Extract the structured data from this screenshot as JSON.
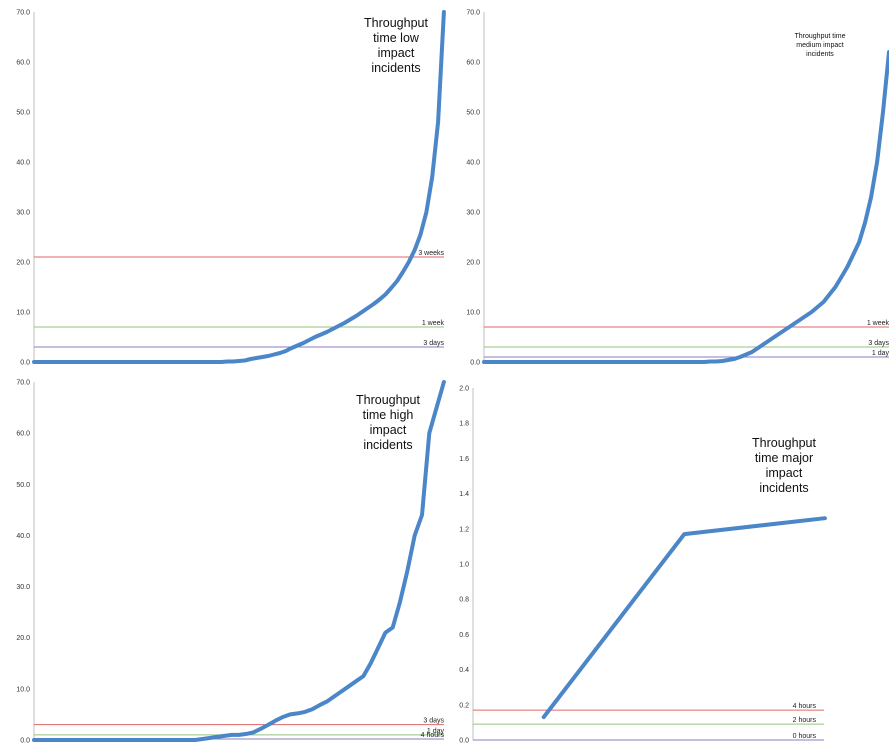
{
  "chart_data": [
    {
      "type": "line",
      "title": "Throughput time low impact incidents",
      "title_lines": [
        "Throughput",
        "time low",
        "impact",
        "incidents"
      ],
      "ylim": [
        0,
        70
      ],
      "ytick_labels": [
        "0.0",
        "10.0",
        "20.0",
        "30.0",
        "40.0",
        "50.0",
        "60.0",
        "70.0"
      ],
      "grid": false,
      "series_color": "#4a86c8",
      "series": [
        {
          "values": [
            0,
            0,
            0,
            0,
            0,
            0,
            0,
            0,
            0,
            0,
            0,
            0,
            0,
            0,
            0,
            0,
            0,
            0,
            0,
            0,
            0,
            0,
            0,
            0,
            0,
            0,
            0,
            0,
            0,
            0,
            0,
            0,
            0,
            0.1,
            0.1,
            0.2,
            0.3,
            0.6,
            0.8,
            1,
            1.2,
            1.5,
            1.8,
            2.2,
            2.8,
            3.3,
            3.8,
            4.4,
            5,
            5.5,
            6,
            6.6,
            7.2,
            7.8,
            8.5,
            9.2,
            10,
            10.8,
            11.6,
            12.5,
            13.5,
            14.8,
            16.2,
            18,
            20,
            22.4,
            25.5,
            30,
            37,
            48,
            70
          ]
        }
      ],
      "reference_lines": [
        {
          "label": "3 weeks",
          "value": 21,
          "color": "#e06666"
        },
        {
          "label": "1 week",
          "value": 7,
          "color": "#93c47d"
        },
        {
          "label": "3 days",
          "value": 3,
          "color": "#8e7cc3"
        }
      ]
    },
    {
      "type": "line",
      "title": "Throughput time medium impact incidents",
      "title_lines": [
        "Throughput time",
        "medium impact",
        "incidents"
      ],
      "ylim": [
        0,
        70
      ],
      "ytick_labels": [
        "0.0",
        "10.0",
        "20.0",
        "30.0",
        "40.0",
        "50.0",
        "60.0",
        "70.0"
      ],
      "grid": false,
      "series_color": "#4a86c8",
      "series": [
        {
          "values": [
            0,
            0,
            0,
            0,
            0,
            0,
            0,
            0,
            0,
            0,
            0,
            0,
            0,
            0,
            0,
            0,
            0,
            0,
            0,
            0,
            0,
            0,
            0,
            0,
            0,
            0,
            0,
            0,
            0,
            0,
            0,
            0,
            0,
            0,
            0,
            0,
            0,
            0,
            0.1,
            0.1,
            0.2,
            0.4,
            0.6,
            1,
            1.5,
            2,
            2.8,
            3.6,
            4.4,
            5.2,
            6,
            6.8,
            7.6,
            8.4,
            9.2,
            10,
            11,
            12,
            13.5,
            15,
            17,
            19,
            21.5,
            24,
            28,
            33,
            40,
            50,
            62
          ]
        }
      ],
      "reference_lines": [
        {
          "label": "1 week",
          "value": 7,
          "color": "#e06666"
        },
        {
          "label": "3 days",
          "value": 3,
          "color": "#93c47d"
        },
        {
          "label": "1 day",
          "value": 1,
          "color": "#8e7cc3"
        }
      ]
    },
    {
      "type": "line",
      "title": "Throughput time high impact incidents",
      "title_lines": [
        "Throughput",
        "time high",
        "impact",
        "incidents"
      ],
      "ylim": [
        0,
        70
      ],
      "ytick_labels": [
        "0.0",
        "10.0",
        "20.0",
        "30.0",
        "40.0",
        "50.0",
        "60.0",
        "70.0"
      ],
      "grid": false,
      "series_color": "#4a86c8",
      "series": [
        {
          "values": [
            0,
            0,
            0,
            0,
            0,
            0,
            0,
            0,
            0,
            0,
            0,
            0,
            0,
            0,
            0,
            0,
            0,
            0,
            0,
            0,
            0,
            0,
            0,
            0.2,
            0.4,
            0.6,
            0.8,
            1,
            1,
            1.2,
            1.5,
            2.2,
            3,
            3.8,
            4.5,
            5,
            5.2,
            5.5,
            6,
            6.8,
            7.5,
            8.5,
            9.5,
            10.5,
            11.5,
            12.5,
            15,
            18,
            21,
            22,
            27,
            33,
            40,
            44,
            60,
            65,
            70
          ]
        }
      ],
      "reference_lines": [
        {
          "label": "3 days",
          "value": 3,
          "color": "#e06666"
        },
        {
          "label": "1 day",
          "value": 1,
          "color": "#93c47d"
        },
        {
          "label": "4 hours",
          "value": 0.2,
          "color": "#8e7cc3"
        }
      ]
    },
    {
      "type": "line",
      "title": "Throughput time major impact incidents",
      "title_lines": [
        "Throughput",
        "time major",
        "impact",
        "incidents"
      ],
      "ylim": [
        0,
        2
      ],
      "ytick_labels": [
        "0.0",
        "0.2",
        "0.4",
        "0.6",
        "0.8",
        "1.0",
        "1.2",
        "1.4",
        "1.6",
        "1.8",
        "2.0"
      ],
      "grid": false,
      "series_color": "#4a86c8",
      "series": [
        {
          "values": [
            0.13,
            1.17,
            1.26
          ]
        }
      ],
      "reference_lines": [
        {
          "label": "4 hours",
          "value": 0.17,
          "color": "#e06666"
        },
        {
          "label": "2 hours",
          "value": 0.09,
          "color": "#93c47d"
        },
        {
          "label": "0 hours",
          "value": 0.0,
          "color": "#8e7cc3"
        }
      ]
    }
  ]
}
